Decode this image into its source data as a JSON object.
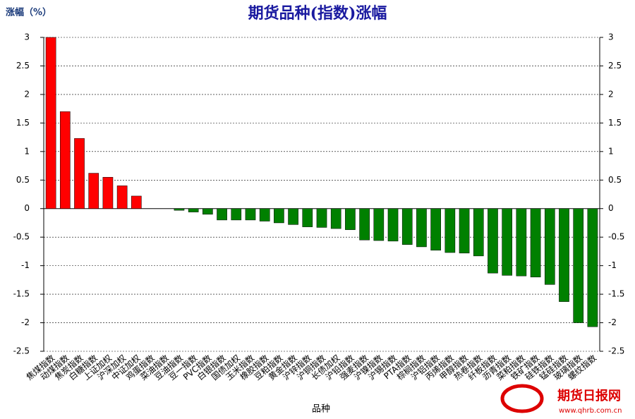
{
  "chart_data": {
    "type": "bar",
    "title": "期货品种(指数)涨幅",
    "y_axis_label": "涨幅（%）",
    "x_axis_label": "品种",
    "watermark": {
      "name": "期货日报网",
      "url": "www.qhrb.com.cn"
    },
    "categories": [
      "焦煤指数",
      "动煤指数",
      "焦炭指数",
      "白糖指数",
      "上证加权",
      "沪深加权",
      "中证加权",
      "鸡蛋指数",
      "菜油指数",
      "豆油指数",
      "豆一指数",
      "PVC指数",
      "白银指数",
      "国债加权",
      "玉米指数",
      "橡胶指数",
      "豆粕指数",
      "黄金指数",
      "沪锌指数",
      "沪铜指数",
      "长债加权",
      "沪铅指数",
      "强麦指数",
      "沪镍指数",
      "沪锡指数",
      "PTA指数",
      "棕榈指数",
      "沪铝指数",
      "丙烯指数",
      "甲醇指数",
      "热卷指数",
      "纤板指数",
      "沥青指数",
      "菜粕指数",
      "铁矿指数",
      "硅铁指数",
      "锰硅指数",
      "玻璃指数",
      "螺纹指数"
    ],
    "values": [
      3.0,
      1.7,
      1.23,
      0.62,
      0.55,
      0.4,
      0.22,
      0,
      0,
      -0.03,
      -0.06,
      -0.1,
      -0.2,
      -0.2,
      -0.2,
      -0.22,
      -0.25,
      -0.28,
      -0.32,
      -0.33,
      -0.35,
      -0.37,
      -0.55,
      -0.56,
      -0.57,
      -0.63,
      -0.67,
      -0.73,
      -0.77,
      -0.78,
      -0.83,
      -1.13,
      -1.17,
      -1.18,
      -1.2,
      -1.33,
      -1.63,
      -2.0,
      -2.07
    ],
    "positive_color": "#ff0000",
    "negative_color": "#008000",
    "ylim": [
      -2.5,
      3
    ],
    "yticks": [
      3,
      2.5,
      2,
      1.5,
      1,
      0.5,
      0,
      -0.5,
      -1,
      -1.5,
      -2,
      -2.5
    ],
    "y2lim": [
      -2.5,
      3
    ],
    "y2ticks": [
      3,
      2.5,
      2,
      1.5,
      1,
      0.5,
      0,
      -0.5,
      -1,
      -1.5,
      -2,
      -2.5
    ],
    "grid": true
  }
}
